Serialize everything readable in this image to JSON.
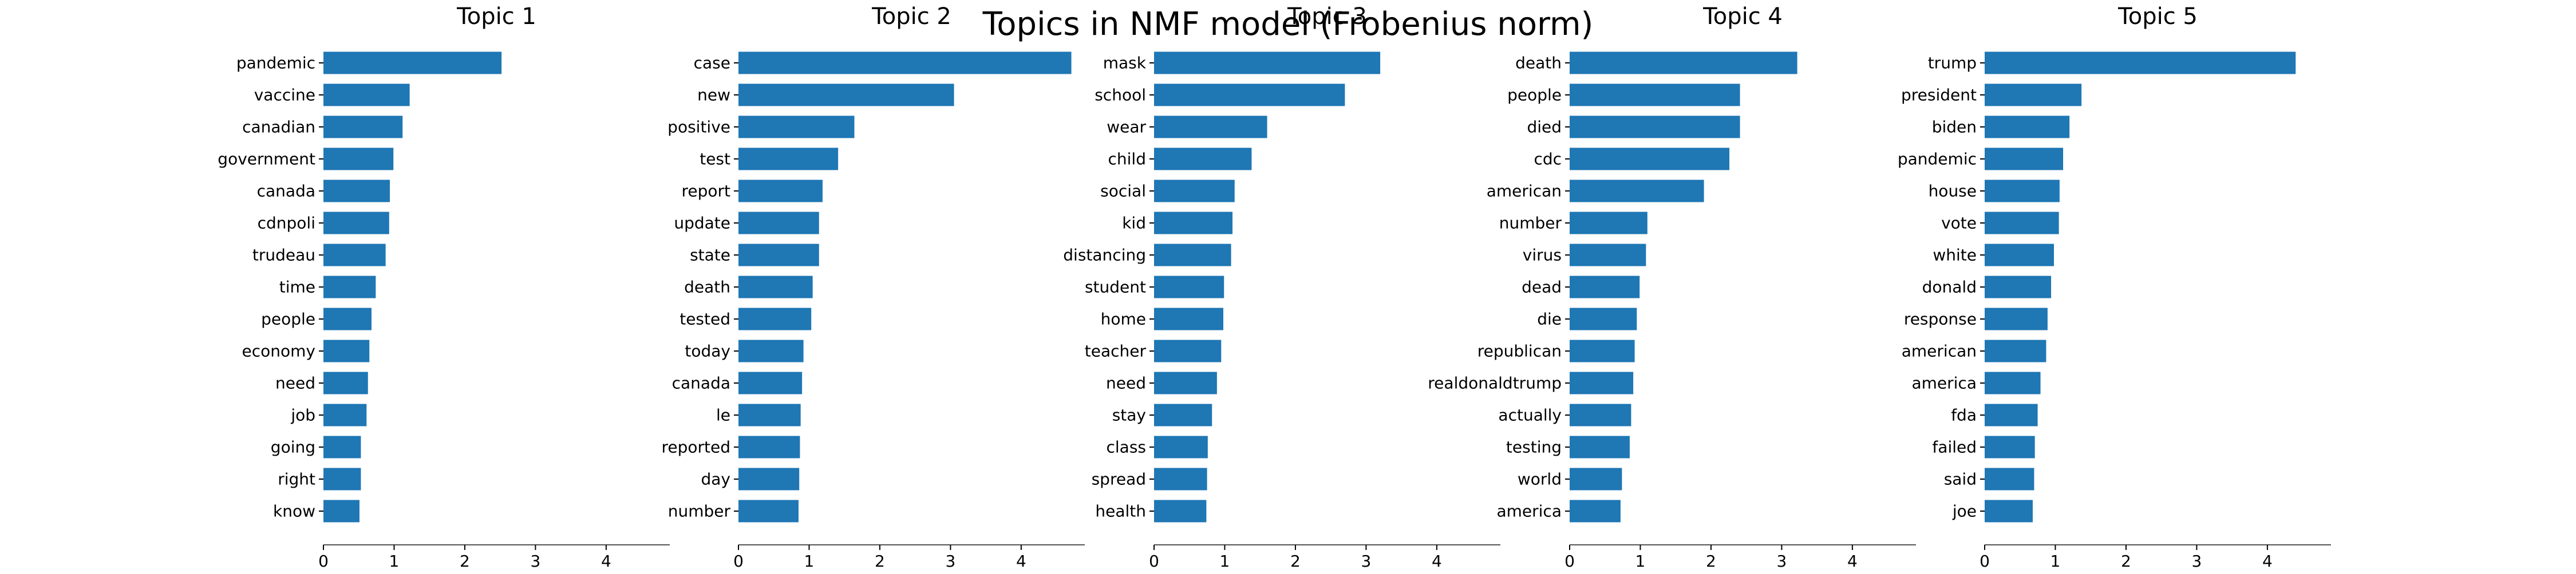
{
  "suptitle": "Topics in NMF model (Frobenius norm)",
  "colors": {
    "bar": "#1f77b4",
    "axis": "#000000"
  },
  "chart_data": [
    {
      "type": "bar",
      "orientation": "horizontal",
      "title": "Topic 1",
      "categories": [
        "pandemic",
        "vaccine",
        "canadian",
        "government",
        "canada",
        "cdnpoli",
        "trudeau",
        "time",
        "people",
        "economy",
        "need",
        "job",
        "going",
        "right",
        "know"
      ],
      "values": [
        2.52,
        1.22,
        1.12,
        0.99,
        0.94,
        0.93,
        0.88,
        0.74,
        0.68,
        0.65,
        0.63,
        0.61,
        0.53,
        0.53,
        0.51
      ],
      "xticks": [
        0,
        1,
        2,
        3,
        4
      ],
      "xlim": [
        0,
        4.9
      ],
      "grid": false
    },
    {
      "type": "bar",
      "orientation": "horizontal",
      "title": "Topic 2",
      "categories": [
        "case",
        "new",
        "positive",
        "test",
        "report",
        "update",
        "state",
        "death",
        "tested",
        "today",
        "canada",
        "le",
        "reported",
        "day",
        "number"
      ],
      "values": [
        4.71,
        3.05,
        1.64,
        1.41,
        1.19,
        1.14,
        1.14,
        1.05,
        1.03,
        0.92,
        0.9,
        0.88,
        0.87,
        0.86,
        0.85
      ],
      "xticks": [
        0,
        1,
        2,
        3,
        4
      ],
      "xlim": [
        0,
        4.9
      ],
      "grid": false
    },
    {
      "type": "bar",
      "orientation": "horizontal",
      "title": "Topic 3",
      "categories": [
        "mask",
        "school",
        "wear",
        "child",
        "social",
        "kid",
        "distancing",
        "student",
        "home",
        "teacher",
        "need",
        "stay",
        "class",
        "spread",
        "health"
      ],
      "values": [
        3.2,
        2.7,
        1.6,
        1.38,
        1.14,
        1.11,
        1.09,
        0.99,
        0.98,
        0.95,
        0.89,
        0.82,
        0.76,
        0.75,
        0.74
      ],
      "xticks": [
        0,
        1,
        2,
        3,
        4
      ],
      "xlim": [
        0,
        4.9
      ],
      "grid": false
    },
    {
      "type": "bar",
      "orientation": "horizontal",
      "title": "Topic 4",
      "categories": [
        "death",
        "people",
        "died",
        "cdc",
        "american",
        "number",
        "virus",
        "dead",
        "die",
        "republican",
        "realdonaldtrump",
        "actually",
        "testing",
        "world",
        "america"
      ],
      "values": [
        3.22,
        2.41,
        2.41,
        2.26,
        1.9,
        1.1,
        1.08,
        0.99,
        0.95,
        0.92,
        0.9,
        0.87,
        0.85,
        0.74,
        0.72
      ],
      "xticks": [
        0,
        1,
        2,
        3,
        4
      ],
      "xlim": [
        0,
        4.9
      ],
      "grid": false
    },
    {
      "type": "bar",
      "orientation": "horizontal",
      "title": "Topic 5",
      "categories": [
        "trump",
        "president",
        "biden",
        "pandemic",
        "house",
        "vote",
        "white",
        "donald",
        "response",
        "american",
        "america",
        "fda",
        "failed",
        "said",
        "joe"
      ],
      "values": [
        4.4,
        1.37,
        1.2,
        1.11,
        1.06,
        1.05,
        0.98,
        0.94,
        0.89,
        0.87,
        0.79,
        0.75,
        0.71,
        0.7,
        0.68
      ],
      "xticks": [
        0,
        1,
        2,
        3,
        4
      ],
      "xlim": [
        0,
        4.9
      ],
      "grid": false
    }
  ]
}
